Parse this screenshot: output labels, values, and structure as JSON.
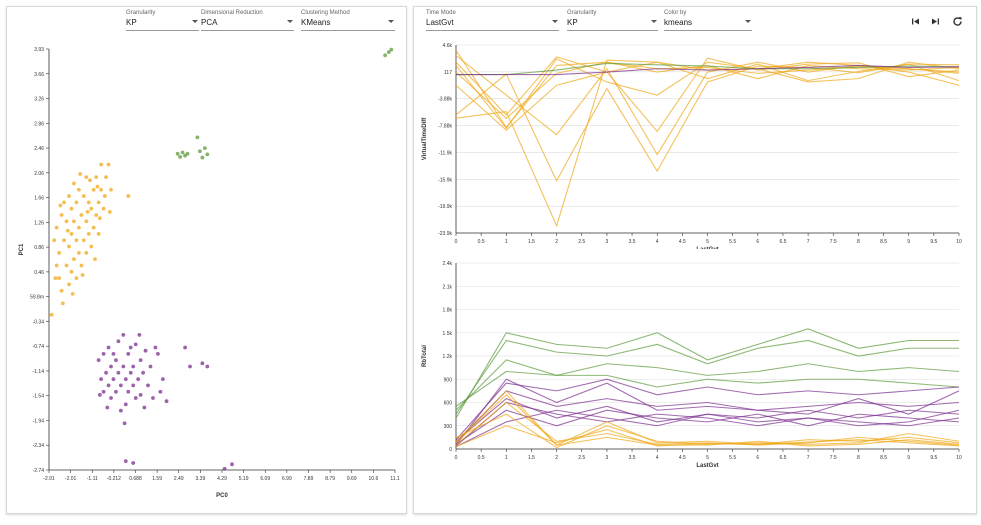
{
  "left_controls": [
    {
      "label": "Granularity",
      "value": "KP"
    },
    {
      "label": "Dimensional Reduction",
      "value": "PCA"
    },
    {
      "label": "Clustering Method",
      "value": "KMeans"
    }
  ],
  "right_controls": [
    {
      "label": "Time Mode",
      "value": "LastGvt"
    },
    {
      "label": "Granularity",
      "value": "KP"
    },
    {
      "label": "Color by",
      "value": "kmeans"
    }
  ],
  "toolbar": {
    "first_icon": "skip-back-icon",
    "last_icon": "skip-forward-icon",
    "reset_icon": "refresh-icon"
  },
  "colors": {
    "cluster_0": "#f0a818",
    "cluster_1": "#7b2d8e",
    "cluster_2": "#5c9a3a"
  },
  "chart_data": [
    {
      "type": "scatter",
      "title": "",
      "xlabel": "PC0",
      "ylabel": "PC1",
      "xlim": [
        -2.91,
        11.1
      ],
      "ylim": [
        -2.74,
        3.93
      ],
      "xticks": [
        "-2.91",
        "-2.01",
        "-1.11",
        "-0.212",
        "0.688",
        "1.59",
        "2.49",
        "3.39",
        "4.29",
        "5.19",
        "6.09",
        "6.99",
        "7.89",
        "8.79",
        "9.69",
        "10.6",
        "11.1"
      ],
      "yticks": [
        "3.93",
        "3.66",
        "3.26",
        "2.86",
        "2.46",
        "2.06",
        "1.66",
        "1.26",
        "0.86",
        "0.46",
        "59.8m",
        "-0.34",
        "-0.74",
        "-1.14",
        "-1.54",
        "-1.94",
        "-2.34",
        "-2.74"
      ],
      "series": [
        {
          "cluster": 0,
          "points": [
            [
              -2.8,
              -0.28
            ],
            [
              -2.7,
              0.9
            ],
            [
              -2.6,
              0.5
            ],
            [
              -2.6,
              1.1
            ],
            [
              -2.5,
              0.3
            ],
            [
              -2.5,
              0.7
            ],
            [
              -2.4,
              1.3
            ],
            [
              -2.4,
              0.1
            ],
            [
              -2.3,
              0.9
            ],
            [
              -2.3,
              1.5
            ],
            [
              -2.2,
              0.5
            ],
            [
              -2.2,
              1.2
            ],
            [
              -2.1,
              0.2
            ],
            [
              -2.1,
              0.8
            ],
            [
              -2.1,
              1.6
            ],
            [
              -2.0,
              0.4
            ],
            [
              -2.0,
              1.0
            ],
            [
              -2.0,
              1.4
            ],
            [
              -1.9,
              0.6
            ],
            [
              -1.9,
              1.2
            ],
            [
              -1.9,
              1.8
            ],
            [
              -1.8,
              0.3
            ],
            [
              -1.8,
              0.9
            ],
            [
              -1.8,
              1.5
            ],
            [
              -1.7,
              0.7
            ],
            [
              -1.7,
              1.1
            ],
            [
              -1.7,
              1.7
            ],
            [
              -1.6,
              0.5
            ],
            [
              -1.6,
              1.3
            ],
            [
              -1.5,
              0.9
            ],
            [
              -1.5,
              1.6
            ],
            [
              -1.4,
              0.7
            ],
            [
              -1.4,
              1.2
            ],
            [
              -1.4,
              1.9
            ],
            [
              -1.3,
              1.0
            ],
            [
              -1.3,
              1.5
            ],
            [
              -1.2,
              0.8
            ],
            [
              -1.2,
              1.4
            ],
            [
              -1.1,
              1.1
            ],
            [
              -1.1,
              1.7
            ],
            [
              -1.0,
              1.3
            ],
            [
              -1.0,
              1.9
            ],
            [
              -0.9,
              1.5
            ],
            [
              -0.9,
              1.0
            ],
            [
              -0.8,
              1.7
            ],
            [
              -0.8,
              2.1
            ],
            [
              -0.7,
              1.4
            ],
            [
              -0.6,
              1.9
            ],
            [
              -0.5,
              2.1
            ],
            [
              -0.4,
              1.7
            ],
            [
              0.3,
              1.6
            ],
            [
              -2.65,
              0.3
            ],
            [
              -2.45,
              1.45
            ],
            [
              -2.35,
              -0.1
            ],
            [
              -2.15,
              1.05
            ],
            [
              -1.95,
              0.05
            ],
            [
              -1.65,
              1.95
            ],
            [
              -1.55,
              0.35
            ],
            [
              -1.25,
              1.85
            ],
            [
              -1.05,
              0.6
            ],
            [
              -0.85,
              1.25
            ],
            [
              -0.65,
              1.6
            ],
            [
              -0.45,
              1.35
            ],
            [
              -0.95,
              1.75
            ],
            [
              -1.35,
              1.35
            ]
          ]
        },
        {
          "cluster": 2,
          "points": [
            [
              2.3,
              2.27
            ],
            [
              2.4,
              2.22
            ],
            [
              2.5,
              2.29
            ],
            [
              2.6,
              2.24
            ],
            [
              2.7,
              2.27
            ],
            [
              3.1,
              2.53
            ],
            [
              3.2,
              2.31
            ],
            [
              3.3,
              2.21
            ],
            [
              3.4,
              2.36
            ],
            [
              3.5,
              2.26
            ],
            [
              10.7,
              3.83
            ],
            [
              10.85,
              3.88
            ],
            [
              10.95,
              3.92
            ]
          ]
        },
        {
          "cluster": 1,
          "points": [
            [
              -0.9,
              -1.0
            ],
            [
              -0.8,
              -1.3
            ],
            [
              -0.7,
              -0.9
            ],
            [
              -0.7,
              -1.5
            ],
            [
              -0.6,
              -1.2
            ],
            [
              -0.5,
              -1.4
            ],
            [
              -0.5,
              -0.8
            ],
            [
              -0.4,
              -1.1
            ],
            [
              -0.4,
              -1.6
            ],
            [
              -0.3,
              -0.9
            ],
            [
              -0.3,
              -1.3
            ],
            [
              -0.2,
              -1.5
            ],
            [
              -0.2,
              -1.0
            ],
            [
              -0.1,
              -1.2
            ],
            [
              -0.1,
              -0.7
            ],
            [
              0.0,
              -1.4
            ],
            [
              0.0,
              -1.8
            ],
            [
              0.1,
              -1.1
            ],
            [
              0.1,
              -0.6
            ],
            [
              0.2,
              -1.3
            ],
            [
              0.2,
              -1.7
            ],
            [
              0.3,
              -0.9
            ],
            [
              0.3,
              -1.5
            ],
            [
              0.4,
              -1.2
            ],
            [
              0.4,
              -0.8
            ],
            [
              0.5,
              -1.4
            ],
            [
              0.5,
              -1.1
            ],
            [
              0.6,
              -1.6
            ],
            [
              0.6,
              -0.75
            ],
            [
              0.7,
              -1.3
            ],
            [
              0.8,
              -1.0
            ],
            [
              0.8,
              -1.55
            ],
            [
              0.9,
              -1.2
            ],
            [
              1.0,
              -0.85
            ],
            [
              1.1,
              -1.4
            ],
            [
              1.2,
              -1.1
            ],
            [
              1.3,
              -1.6
            ],
            [
              1.5,
              -0.9
            ],
            [
              1.6,
              -1.5
            ],
            [
              1.7,
              -1.3
            ],
            [
              2.6,
              -0.8
            ],
            [
              2.8,
              -1.1
            ],
            [
              3.3,
              -1.05
            ],
            [
              3.5,
              -1.1
            ],
            [
              0.2,
              -2.6
            ],
            [
              0.5,
              -2.63
            ],
            [
              4.2,
              -2.72
            ],
            [
              4.5,
              -2.65
            ],
            [
              -0.55,
              -1.75
            ],
            [
              0.15,
              -2.0
            ],
            [
              0.95,
              -1.75
            ],
            [
              1.85,
              -1.65
            ],
            [
              1.4,
              -0.8
            ],
            [
              -0.85,
              -1.55
            ],
            [
              0.75,
              -0.6
            ]
          ]
        }
      ]
    },
    {
      "type": "line",
      "title": "",
      "xlabel": "LastGvt",
      "ylabel": "VirtualTimeDiff",
      "xlim": [
        0,
        10
      ],
      "ylim": [
        -23900,
        4600
      ],
      "xticks": [
        "0",
        "0.5",
        "1",
        "1.5",
        "2",
        "2.5",
        "3",
        "3.5",
        "4",
        "4.5",
        "5",
        "5.5",
        "6",
        "6.5",
        "7",
        "7.5",
        "8",
        "8.5",
        "9",
        "9.5",
        "10"
      ],
      "yticks": [
        "4.6k",
        "117",
        "-3.88k",
        "-7.88k",
        "-11.9k",
        "-15.9k",
        "-19.9k",
        "-23.9k"
      ],
      "x": [
        0,
        1,
        2,
        3,
        4,
        5,
        6,
        7,
        8,
        9,
        10
      ],
      "series": [
        {
          "cluster": 0,
          "values": [
            3800,
            -7900,
            1500,
            2000,
            1000,
            1200,
            300,
            800,
            1300,
            1000,
            500
          ]
        },
        {
          "cluster": 0,
          "values": [
            -1500,
            -8300,
            -1500,
            500,
            -8500,
            2600,
            800,
            1700,
            1900,
            -200,
            800
          ]
        },
        {
          "cluster": 0,
          "values": [
            -6000,
            200,
            -16000,
            -2000,
            -14500,
            -1000,
            1400,
            1200,
            400,
            1700,
            1600
          ]
        },
        {
          "cluster": 0,
          "values": [
            -6500,
            -5500,
            -22800,
            2300,
            2000,
            800,
            1000,
            -1000,
            -500,
            2000,
            1000
          ]
        },
        {
          "cluster": 0,
          "values": [
            2000,
            -6000,
            2800,
            500,
            2000,
            -500,
            1700,
            -800,
            600,
            1700,
            -800
          ]
        },
        {
          "cluster": 0,
          "values": [
            3000,
            -3000,
            -9000,
            1000,
            -12000,
            500,
            2000,
            500,
            1500,
            500,
            -1500
          ]
        },
        {
          "cluster": 0,
          "values": [
            500,
            -6500,
            300,
            2000,
            500,
            1500,
            -500,
            1500,
            1000,
            800,
            1200
          ]
        },
        {
          "cluster": 0,
          "values": [
            1500,
            -8000,
            2500,
            -1000,
            -3000,
            2000,
            1000,
            2000,
            1500,
            1000,
            300
          ]
        },
        {
          "cluster": 2,
          "values": [
            117,
            117,
            800,
            1800,
            1600,
            1400,
            1000,
            1000,
            1200,
            1400,
            1300
          ]
        },
        {
          "cluster": 1,
          "values": [
            117,
            117,
            117,
            500,
            1000,
            800,
            1000,
            1200,
            1500,
            1200,
            1300
          ]
        }
      ]
    },
    {
      "type": "line",
      "title": "",
      "xlabel": "LastGvt",
      "ylabel": "RbTotal",
      "xlim": [
        0,
        10
      ],
      "ylim": [
        0,
        2400
      ],
      "xticks": [
        "0",
        "0.5",
        "1",
        "1.5",
        "2",
        "2.5",
        "3",
        "3.5",
        "4",
        "4.5",
        "5",
        "5.5",
        "6",
        "6.5",
        "7",
        "7.5",
        "8",
        "8.5",
        "9",
        "9.5",
        "10"
      ],
      "yticks": [
        "2.4k",
        "2.1k",
        "1.8k",
        "1.5k",
        "1.2k",
        "900",
        "600",
        "300",
        "0"
      ],
      "x": [
        0,
        1,
        2,
        3,
        4,
        5,
        6,
        7,
        8,
        9,
        10
      ],
      "series": [
        {
          "cluster": 2,
          "values": [
            400,
            1500,
            1350,
            1300,
            1500,
            1150,
            1350,
            1550,
            1300,
            1400,
            1400
          ]
        },
        {
          "cluster": 2,
          "values": [
            500,
            1150,
            950,
            1100,
            1050,
            950,
            1000,
            1100,
            1000,
            1050,
            1000
          ]
        },
        {
          "cluster": 2,
          "values": [
            550,
            1000,
            950,
            950,
            800,
            900,
            850,
            900,
            900,
            850,
            800
          ]
        },
        {
          "cluster": 2,
          "values": [
            450,
            1400,
            1250,
            1200,
            1350,
            1100,
            1300,
            1400,
            1200,
            1300,
            1300
          ]
        },
        {
          "cluster": 1,
          "values": [
            50,
            900,
            600,
            850,
            500,
            550,
            500,
            450,
            650,
            450,
            750
          ]
        },
        {
          "cluster": 1,
          "values": [
            100,
            650,
            400,
            550,
            350,
            450,
            400,
            500,
            400,
            500,
            450
          ]
        },
        {
          "cluster": 1,
          "values": [
            30,
            350,
            500,
            400,
            300,
            450,
            350,
            400,
            350,
            300,
            400
          ]
        },
        {
          "cluster": 1,
          "values": [
            80,
            750,
            550,
            650,
            550,
            600,
            500,
            550,
            600,
            550,
            600
          ]
        },
        {
          "cluster": 1,
          "values": [
            60,
            500,
            300,
            500,
            400,
            350,
            450,
            300,
            450,
            400,
            350
          ]
        },
        {
          "cluster": 1,
          "values": [
            120,
            850,
            750,
            900,
            700,
            800,
            700,
            750,
            700,
            750,
            800
          ]
        },
        {
          "cluster": 1,
          "values": [
            40,
            600,
            450,
            350,
            450,
            400,
            300,
            400,
            300,
            350,
            500
          ]
        },
        {
          "cluster": 0,
          "values": [
            100,
            750,
            50,
            350,
            80,
            100,
            60,
            120,
            100,
            150,
            80
          ]
        },
        {
          "cluster": 0,
          "values": [
            50,
            600,
            100,
            200,
            60,
            80,
            50,
            80,
            150,
            100,
            50
          ]
        },
        {
          "cluster": 0,
          "values": [
            150,
            450,
            20,
            300,
            100,
            60,
            80,
            60,
            80,
            200,
            100
          ]
        },
        {
          "cluster": 0,
          "values": [
            80,
            700,
            50,
            150,
            50,
            50,
            100,
            40,
            60,
            120,
            60
          ]
        },
        {
          "cluster": 0,
          "values": [
            30,
            300,
            80,
            250,
            40,
            70,
            60,
            90,
            120,
            80,
            40
          ]
        }
      ]
    }
  ]
}
